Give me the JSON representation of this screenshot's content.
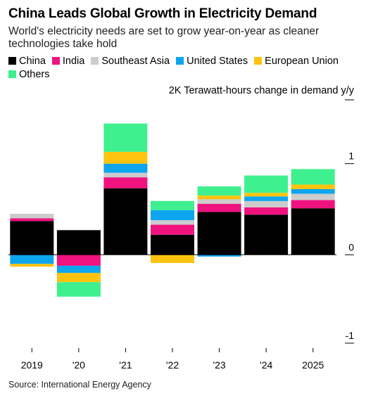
{
  "title": "China Leads Global Growth in Electricity Demand",
  "subtitle": "World's electricity needs are set to grow year-on-year as cleaner technologies take hold",
  "source": "Source: International Energy Agency",
  "colors": {
    "China": "#000000",
    "India": "#f0127f",
    "Southeast Asia": "#cccccc",
    "United States": "#0ea5ef",
    "European Union": "#fdc30f",
    "Others": "#3ef08e"
  },
  "chart_data": {
    "type": "bar",
    "stacked": true,
    "unit_label": "2K Terawatt-hours change in demand y/y",
    "categories": [
      "2019",
      "'20",
      "'21",
      "'22",
      "'23",
      "'24",
      "2025"
    ],
    "yticks": [
      {
        "value": 1.7,
        "label": ""
      },
      {
        "value": 1.0,
        "label": "1"
      },
      {
        "value": 0.0,
        "label": "0"
      },
      {
        "value": -0.97,
        "label": "-1"
      }
    ],
    "ylim": [
      -0.97,
      1.7
    ],
    "grid": false,
    "legend_position": "top",
    "series": [
      {
        "name": "China",
        "values": [
          0.37,
          0.27,
          0.73,
          0.22,
          0.47,
          0.44,
          0.51
        ]
      },
      {
        "name": "India",
        "values": [
          0.03,
          -0.12,
          0.12,
          0.11,
          0.09,
          0.08,
          0.09
        ]
      },
      {
        "name": "Southeast Asia",
        "values": [
          0.05,
          0.0,
          0.05,
          0.05,
          0.05,
          0.07,
          0.07
        ]
      },
      {
        "name": "United States",
        "values": [
          -0.1,
          -0.08,
          0.1,
          0.11,
          -0.02,
          0.05,
          0.05
        ]
      },
      {
        "name": "European Union",
        "values": [
          -0.03,
          -0.1,
          0.13,
          -0.09,
          0.04,
          0.04,
          0.05
        ]
      },
      {
        "name": "Others",
        "values": [
          0.0,
          -0.16,
          0.31,
          0.1,
          0.1,
          0.19,
          0.17
        ]
      }
    ]
  }
}
